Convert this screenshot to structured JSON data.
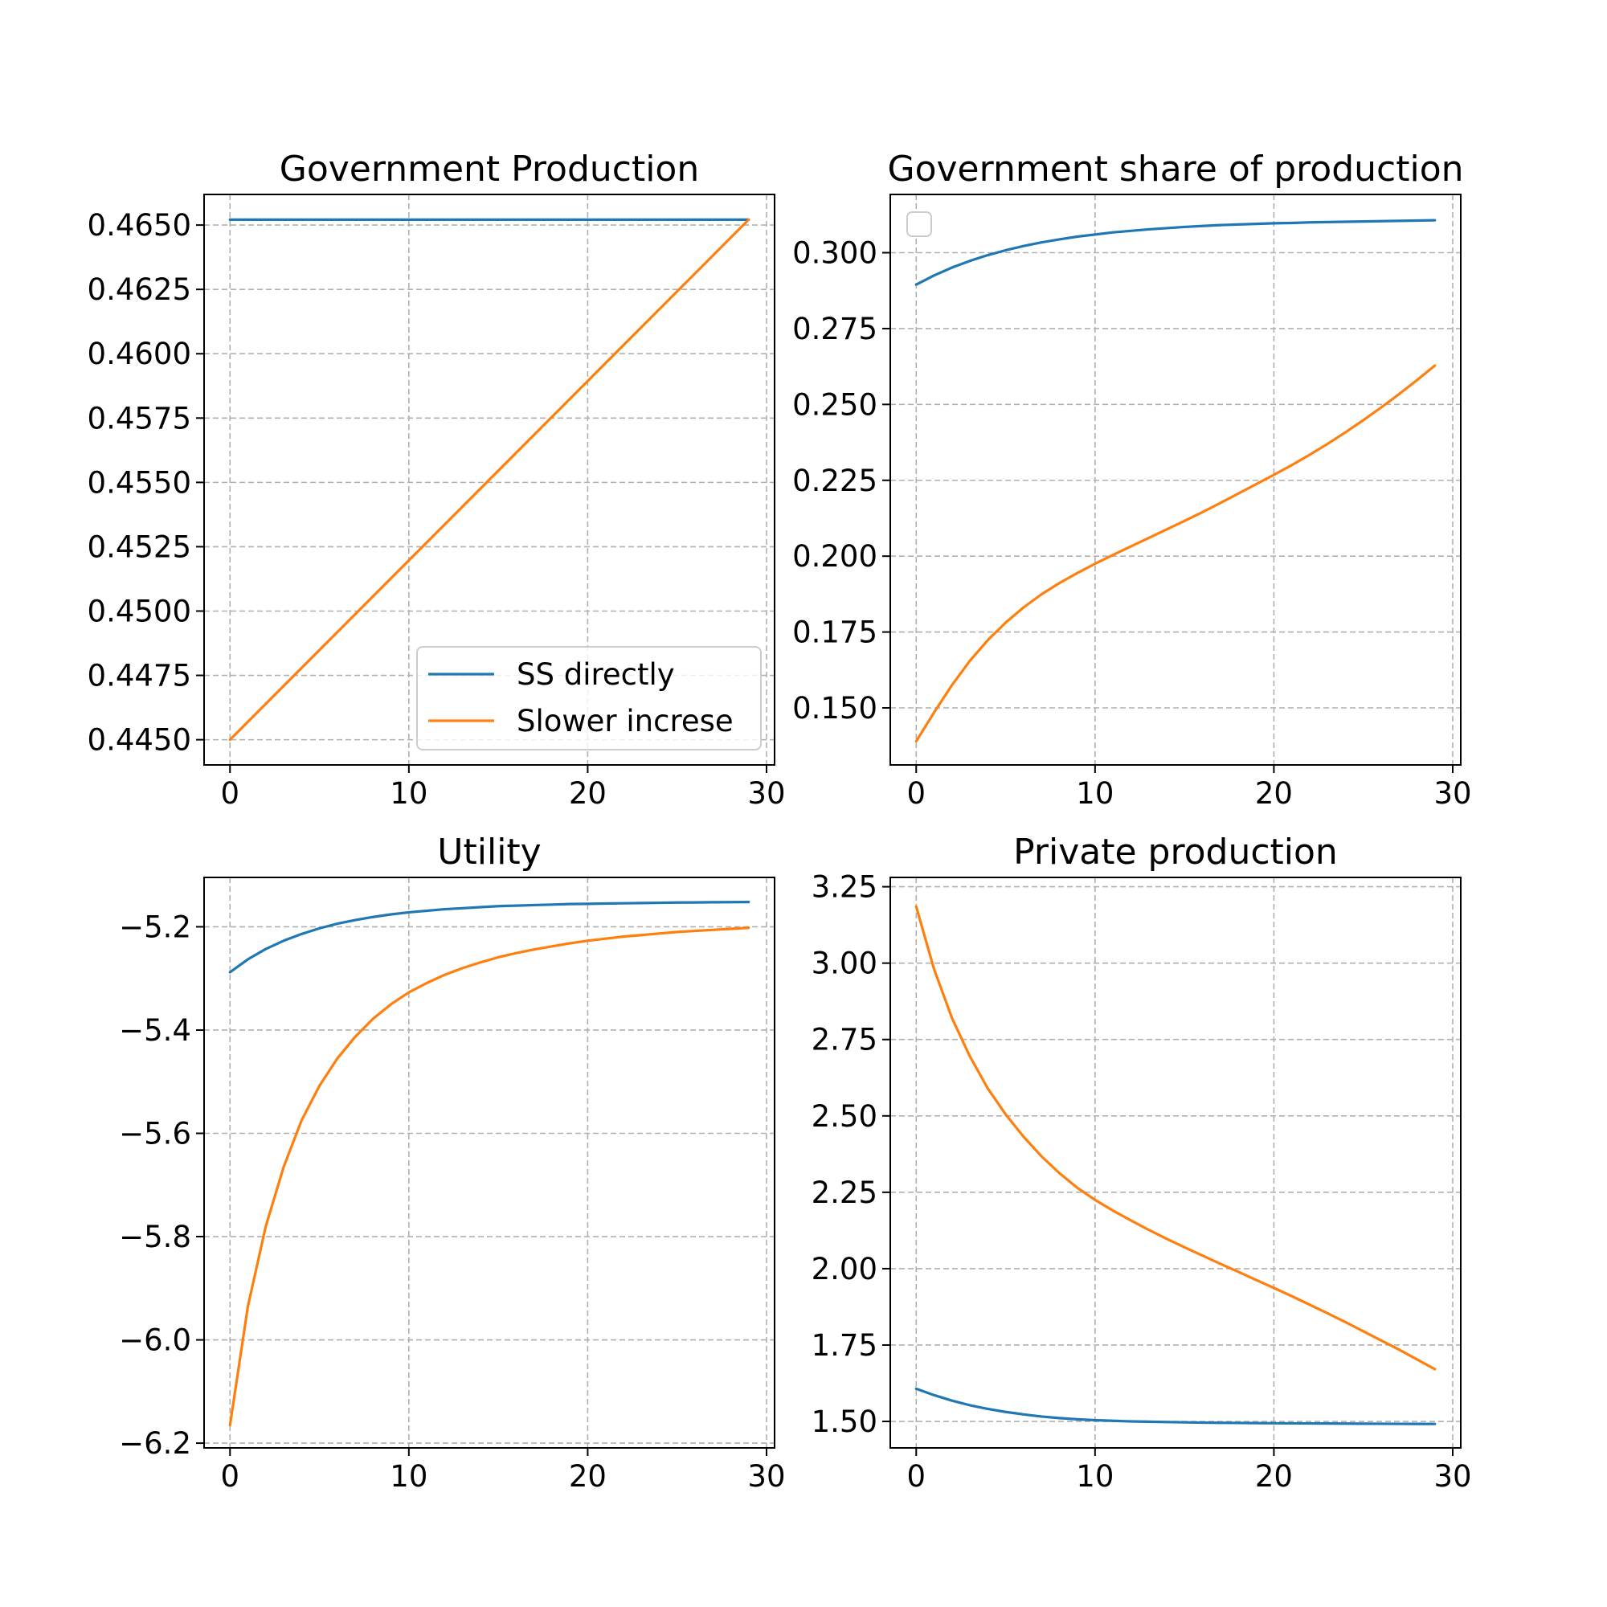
{
  "chart_data": [
    {
      "type": "line",
      "title": "Government Production",
      "xlim": [
        -1.45,
        30.45
      ],
      "ylim": [
        0.44402,
        0.46619
      ],
      "xticks": [
        0,
        10,
        20,
        30
      ],
      "yticks": [
        0.445,
        0.4475,
        0.45,
        0.4525,
        0.455,
        0.4575,
        0.46,
        0.4625,
        0.465
      ],
      "ytick_labels": [
        "0.4450",
        "0.4475",
        "0.4500",
        "0.4525",
        "0.4550",
        "0.4575",
        "0.4600",
        "0.4625",
        "0.4650"
      ],
      "grid": true,
      "legend": {
        "show": true,
        "placement": "lower-right"
      },
      "series": [
        {
          "name": "SS directly",
          "color": "#1f77b4",
          "x": [
            0,
            29
          ],
          "y": [
            0.46521,
            0.46521
          ]
        },
        {
          "name": "Slower increse",
          "color": "#ff7f0e",
          "x": [
            0,
            29
          ],
          "y": [
            0.445,
            0.46521
          ]
        }
      ]
    },
    {
      "type": "line",
      "title": "Government share of production",
      "xlim": [
        -1.45,
        30.45
      ],
      "ylim": [
        0.1312,
        0.3192
      ],
      "xticks": [
        0,
        10,
        20,
        30
      ],
      "yticks": [
        0.15,
        0.175,
        0.2,
        0.225,
        0.25,
        0.275,
        0.3
      ],
      "ytick_labels": [
        "0.150",
        "0.175",
        "0.200",
        "0.225",
        "0.250",
        "0.275",
        "0.300"
      ],
      "grid": true,
      "legend": {
        "show": true,
        "placement": "upper-left",
        "entries": []
      },
      "series": [
        {
          "color": "#1f77b4",
          "x": [
            0,
            1,
            2,
            3,
            4,
            5,
            6,
            7,
            8,
            9,
            10,
            11,
            12,
            13,
            14,
            15,
            16,
            17,
            18,
            19,
            20,
            21,
            22,
            23,
            24,
            25,
            26,
            27,
            28,
            29
          ],
          "y": [
            0.2895,
            0.2925,
            0.2951,
            0.2973,
            0.2992,
            0.3008,
            0.3022,
            0.3034,
            0.3044,
            0.3053,
            0.306,
            0.3067,
            0.3072,
            0.3077,
            0.3081,
            0.3085,
            0.3088,
            0.3091,
            0.3093,
            0.3095,
            0.3097,
            0.3098,
            0.31,
            0.3101,
            0.3102,
            0.3103,
            0.3104,
            0.3105,
            0.3106,
            0.3107
          ]
        },
        {
          "color": "#ff7f0e",
          "x": [
            0,
            1,
            2,
            3,
            4,
            5,
            6,
            7,
            8,
            9,
            10,
            11,
            12,
            13,
            14,
            15,
            16,
            17,
            18,
            19,
            20,
            21,
            22,
            23,
            24,
            25,
            26,
            27,
            28,
            29
          ],
          "y": [
            0.139,
            0.1485,
            0.1575,
            0.1655,
            0.1723,
            0.1781,
            0.1831,
            0.1874,
            0.1911,
            0.1944,
            0.1975,
            0.2004,
            0.2032,
            0.206,
            0.2088,
            0.2116,
            0.2145,
            0.2175,
            0.2206,
            0.2237,
            0.2268,
            0.23,
            0.2334,
            0.237,
            0.2408,
            0.2448,
            0.249,
            0.2534,
            0.258,
            0.2628
          ]
        }
      ]
    },
    {
      "type": "line",
      "title": "Utility",
      "xlim": [
        -1.45,
        30.45
      ],
      "ylim": [
        -6.2092,
        -5.1044
      ],
      "xticks": [
        0,
        10,
        20,
        30
      ],
      "yticks": [
        -6.2,
        -6.0,
        -5.8,
        -5.6,
        -5.4,
        -5.2
      ],
      "ytick_labels": [
        "−6.2",
        "−6.0",
        "−5.8",
        "−5.6",
        "−5.4",
        "−5.2"
      ],
      "grid": true,
      "legend": {
        "show": false
      },
      "series": [
        {
          "color": "#1f77b4",
          "x": [
            0,
            1,
            2,
            3,
            4,
            5,
            6,
            7,
            8,
            9,
            10,
            11,
            12,
            13,
            14,
            15,
            16,
            17,
            18,
            19,
            20,
            21,
            22,
            23,
            24,
            25,
            26,
            27,
            28,
            29
          ],
          "y": [
            -5.288,
            -5.263,
            -5.243,
            -5.227,
            -5.214,
            -5.203,
            -5.194,
            -5.187,
            -5.181,
            -5.176,
            -5.172,
            -5.169,
            -5.166,
            -5.164,
            -5.162,
            -5.16,
            -5.159,
            -5.158,
            -5.157,
            -5.156,
            -5.1555,
            -5.155,
            -5.1545,
            -5.154,
            -5.1535,
            -5.153,
            -5.1528,
            -5.1525,
            -5.1522,
            -5.152
          ]
        },
        {
          "color": "#ff7f0e",
          "x": [
            0,
            1,
            2,
            3,
            4,
            5,
            6,
            7,
            8,
            9,
            10,
            11,
            12,
            13,
            14,
            15,
            16,
            17,
            18,
            19,
            20,
            21,
            22,
            23,
            24,
            25,
            26,
            27,
            28,
            29
          ],
          "y": [
            -6.165,
            -5.935,
            -5.78,
            -5.665,
            -5.575,
            -5.508,
            -5.455,
            -5.413,
            -5.378,
            -5.35,
            -5.327,
            -5.309,
            -5.293,
            -5.28,
            -5.269,
            -5.259,
            -5.251,
            -5.244,
            -5.238,
            -5.232,
            -5.227,
            -5.223,
            -5.219,
            -5.216,
            -5.213,
            -5.21,
            -5.208,
            -5.206,
            -5.204,
            -5.202
          ]
        }
      ]
    },
    {
      "type": "line",
      "title": "Private production",
      "xlim": [
        -1.45,
        30.45
      ],
      "ylim": [
        1.4133,
        3.2805
      ],
      "xticks": [
        0,
        10,
        20,
        30
      ],
      "yticks": [
        1.5,
        1.75,
        2.0,
        2.25,
        2.5,
        2.75,
        3.0,
        3.25
      ],
      "ytick_labels": [
        "1.50",
        "1.75",
        "2.00",
        "2.25",
        "2.50",
        "2.75",
        "3.00",
        "3.25"
      ],
      "grid": true,
      "legend": {
        "show": false
      },
      "series": [
        {
          "color": "#1f77b4",
          "x": [
            0,
            1,
            2,
            3,
            4,
            5,
            6,
            7,
            8,
            9,
            10,
            11,
            12,
            13,
            14,
            15,
            16,
            17,
            18,
            19,
            20,
            21,
            22,
            23,
            24,
            25,
            26,
            27,
            28,
            29
          ],
          "y": [
            1.607,
            1.586,
            1.568,
            1.553,
            1.541,
            1.531,
            1.523,
            1.516,
            1.511,
            1.507,
            1.504,
            1.502,
            1.5,
            1.499,
            1.498,
            1.497,
            1.496,
            1.4955,
            1.495,
            1.4945,
            1.494,
            1.4937,
            1.4934,
            1.4931,
            1.4928,
            1.4925,
            1.4923,
            1.4921,
            1.4919,
            1.4917
          ]
        },
        {
          "color": "#ff7f0e",
          "x": [
            0,
            1,
            2,
            3,
            4,
            5,
            6,
            7,
            8,
            9,
            10,
            11,
            12,
            13,
            14,
            15,
            16,
            17,
            18,
            19,
            20,
            21,
            22,
            23,
            24,
            25,
            26,
            27,
            28,
            29
          ],
          "y": [
            3.185,
            2.98,
            2.82,
            2.695,
            2.59,
            2.505,
            2.432,
            2.368,
            2.313,
            2.265,
            2.225,
            2.19,
            2.158,
            2.127,
            2.098,
            2.07,
            2.043,
            2.016,
            1.99,
            1.963,
            1.937,
            1.91,
            1.882,
            1.854,
            1.825,
            1.795,
            1.765,
            1.735,
            1.703,
            1.671
          ]
        }
      ]
    }
  ]
}
